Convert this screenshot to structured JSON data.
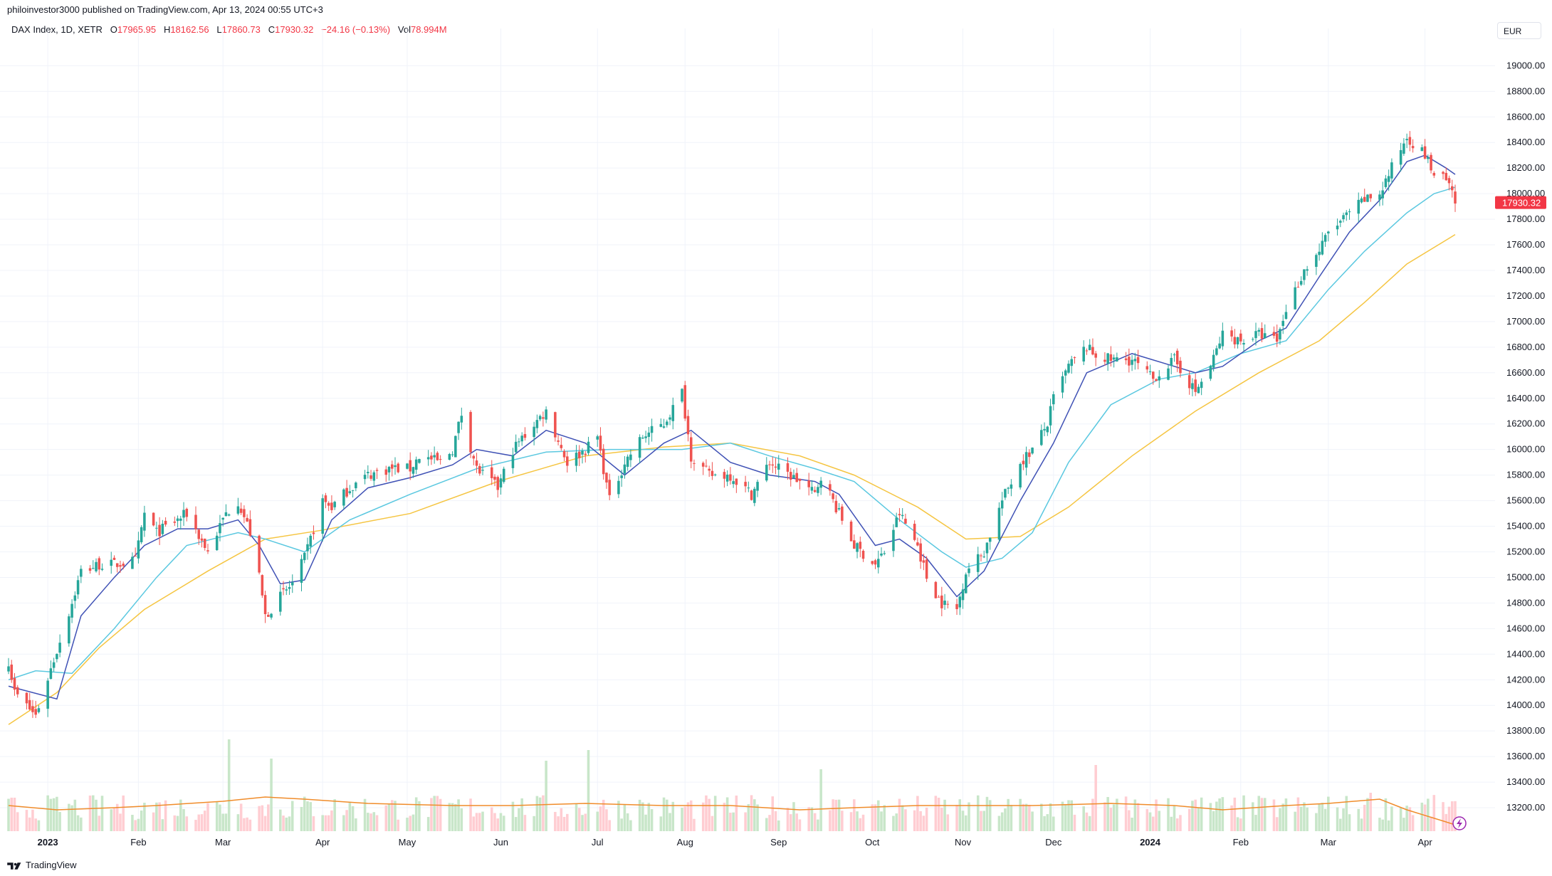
{
  "header": {
    "credit": "philoinvestor3000 published on TradingView.com, Apr 13, 2024 00:55 UTC+3",
    "symbol": "DAX Index, 1D, XETR",
    "o_label": "O",
    "o_value": "17965.95",
    "h_label": "H",
    "h_value": "18162.56",
    "l_label": "L",
    "l_value": "17860.73",
    "c_label": "C",
    "c_value": "17930.32",
    "change": "−24.16 (−0.13%)",
    "vol_label": "Vol",
    "vol_value": "78.994M"
  },
  "currency": "EUR",
  "footer": {
    "brand": "TradingView"
  },
  "colors": {
    "up": "#26a69a",
    "down": "#ef5350",
    "vol_up": "#c8e6c9",
    "vol_down": "#ffcdd2",
    "ma_fast": "#3f51b5",
    "ma_mid": "#5bc8e0",
    "ma_slow": "#f5c542",
    "vol_ma": "#f08c2a",
    "grid": "#f0f3fa",
    "last_price_bg": "#f23645"
  },
  "chart_data": {
    "type": "candlestick",
    "ylim": [
      13050,
      19180
    ],
    "yticks": [
      "13200.00",
      "13400.00",
      "13600.00",
      "13800.00",
      "14000.00",
      "14200.00",
      "14400.00",
      "14600.00",
      "14800.00",
      "15000.00",
      "15200.00",
      "15400.00",
      "15600.00",
      "15800.00",
      "16000.00",
      "16200.00",
      "16400.00",
      "16600.00",
      "16800.00",
      "17000.00",
      "17200.00",
      "17400.00",
      "17600.00",
      "17800.00",
      "18000.00",
      "18200.00",
      "18400.00",
      "18600.00",
      "18800.00",
      "19000.00"
    ],
    "last_price": "17930.32",
    "xticks": [
      {
        "label": "2023",
        "date": "2023-01-02",
        "bold": true
      },
      {
        "label": "Feb",
        "date": "2023-02-01"
      },
      {
        "label": "Mar",
        "date": "2023-03-01"
      },
      {
        "label": "Apr",
        "date": "2023-04-03"
      },
      {
        "label": "May",
        "date": "2023-05-01"
      },
      {
        "label": "Jun",
        "date": "2023-06-01"
      },
      {
        "label": "Jul",
        "date": "2023-07-03"
      },
      {
        "label": "Aug",
        "date": "2023-08-01"
      },
      {
        "label": "Sep",
        "date": "2023-09-01"
      },
      {
        "label": "Oct",
        "date": "2023-10-02"
      },
      {
        "label": "Nov",
        "date": "2023-11-01"
      },
      {
        "label": "Dec",
        "date": "2023-12-01"
      },
      {
        "label": "2024",
        "date": "2024-01-02",
        "bold": true
      },
      {
        "label": "Feb",
        "date": "2024-02-01"
      },
      {
        "label": "Mar",
        "date": "2024-03-01"
      },
      {
        "label": "Apr",
        "date": "2024-04-02"
      }
    ],
    "close_path": [
      [
        "2022-12-20",
        14350
      ],
      [
        "2022-12-22",
        14100
      ],
      [
        "2022-12-29",
        13920
      ],
      [
        "2023-01-05",
        14430
      ],
      [
        "2023-01-10",
        14800
      ],
      [
        "2023-01-13",
        15050
      ],
      [
        "2023-01-19",
        15100
      ],
      [
        "2023-01-24",
        15100
      ],
      [
        "2023-01-31",
        15130
      ],
      [
        "2023-02-03",
        15500
      ],
      [
        "2023-02-07",
        15350
      ],
      [
        "2023-02-14",
        15450
      ],
      [
        "2023-02-17",
        15500
      ],
      [
        "2023-02-24",
        15200
      ],
      [
        "2023-03-02",
        15500
      ],
      [
        "2023-03-06",
        15600
      ],
      [
        "2023-03-10",
        15350
      ],
      [
        "2023-03-13",
        15000
      ],
      [
        "2023-03-15",
        14700
      ],
      [
        "2023-03-20",
        14850
      ],
      [
        "2023-03-24",
        14950
      ],
      [
        "2023-03-28",
        15150
      ],
      [
        "2023-04-03",
        15600
      ],
      [
        "2023-04-06",
        15550
      ],
      [
        "2023-04-12",
        15700
      ],
      [
        "2023-04-18",
        15800
      ],
      [
        "2023-04-25",
        15850
      ],
      [
        "2023-05-02",
        15850
      ],
      [
        "2023-05-05",
        15950
      ],
      [
        "2023-05-12",
        15900
      ],
      [
        "2023-05-16",
        16000
      ],
      [
        "2023-05-19",
        16280
      ],
      [
        "2023-05-24",
        15850
      ],
      [
        "2023-05-31",
        15700
      ],
      [
        "2023-06-05",
        16000
      ],
      [
        "2023-06-12",
        16200
      ],
      [
        "2023-06-16",
        16300
      ],
      [
        "2023-06-23",
        15900
      ],
      [
        "2023-06-29",
        16000
      ],
      [
        "2023-07-03",
        16100
      ],
      [
        "2023-07-07",
        15600
      ],
      [
        "2023-07-12",
        15900
      ],
      [
        "2023-07-18",
        16100
      ],
      [
        "2023-07-25",
        16200
      ],
      [
        "2023-07-31",
        16450
      ],
      [
        "2023-08-03",
        15950
      ],
      [
        "2023-08-09",
        15800
      ],
      [
        "2023-08-16",
        15800
      ],
      [
        "2023-08-23",
        15650
      ],
      [
        "2023-08-29",
        15900
      ],
      [
        "2023-09-01",
        15850
      ],
      [
        "2023-09-08",
        15750
      ],
      [
        "2023-09-13",
        15650
      ],
      [
        "2023-09-15",
        15800
      ],
      [
        "2023-09-21",
        15500
      ],
      [
        "2023-09-26",
        15250
      ],
      [
        "2023-10-03",
        15100
      ],
      [
        "2023-10-06",
        15200
      ],
      [
        "2023-10-11",
        15500
      ],
      [
        "2023-10-17",
        15250
      ],
      [
        "2023-10-20",
        15000
      ],
      [
        "2023-10-25",
        14800
      ],
      [
        "2023-10-30",
        14750
      ],
      [
        "2023-11-02",
        15050
      ],
      [
        "2023-11-08",
        15200
      ],
      [
        "2023-11-14",
        15600
      ],
      [
        "2023-11-20",
        15900
      ],
      [
        "2023-11-24",
        16000
      ],
      [
        "2023-11-29",
        16200
      ],
      [
        "2023-12-01",
        16400
      ],
      [
        "2023-12-06",
        16650
      ],
      [
        "2023-12-12",
        16800
      ],
      [
        "2023-12-14",
        16750
      ],
      [
        "2023-12-20",
        16700
      ],
      [
        "2023-12-27",
        16700
      ],
      [
        "2024-01-03",
        16550
      ],
      [
        "2024-01-05",
        16600
      ],
      [
        "2024-01-10",
        16700
      ],
      [
        "2024-01-17",
        16450
      ],
      [
        "2024-01-22",
        16650
      ],
      [
        "2024-01-26",
        16900
      ],
      [
        "2024-02-01",
        16850
      ],
      [
        "2024-02-07",
        16900
      ],
      [
        "2024-02-13",
        16850
      ],
      [
        "2024-02-16",
        17100
      ],
      [
        "2024-02-22",
        17400
      ],
      [
        "2024-02-27",
        17550
      ],
      [
        "2024-03-01",
        17700
      ],
      [
        "2024-03-06",
        17800
      ],
      [
        "2024-03-08",
        17850
      ],
      [
        "2024-03-13",
        17950
      ],
      [
        "2024-03-18",
        18000
      ],
      [
        "2024-03-22",
        18200
      ],
      [
        "2024-03-27",
        18450
      ],
      [
        "2024-04-02",
        18300
      ],
      [
        "2024-04-05",
        18150
      ],
      [
        "2024-04-09",
        18100
      ],
      [
        "2024-04-12",
        17930
      ]
    ],
    "ma_fast_path": [
      [
        "2022-12-20",
        14150
      ],
      [
        "2023-01-05",
        14050
      ],
      [
        "2023-01-13",
        14700
      ],
      [
        "2023-01-24",
        15000
      ],
      [
        "2023-02-03",
        15250
      ],
      [
        "2023-02-14",
        15380
      ],
      [
        "2023-02-24",
        15380
      ],
      [
        "2023-03-06",
        15450
      ],
      [
        "2023-03-13",
        15250
      ],
      [
        "2023-03-20",
        14950
      ],
      [
        "2023-03-28",
        14980
      ],
      [
        "2023-04-06",
        15450
      ],
      [
        "2023-04-18",
        15700
      ],
      [
        "2023-05-02",
        15780
      ],
      [
        "2023-05-16",
        15880
      ],
      [
        "2023-05-24",
        16000
      ],
      [
        "2023-06-05",
        15950
      ],
      [
        "2023-06-16",
        16150
      ],
      [
        "2023-06-29",
        16050
      ],
      [
        "2023-07-12",
        15800
      ],
      [
        "2023-07-25",
        16050
      ],
      [
        "2023-08-03",
        16150
      ],
      [
        "2023-08-16",
        15900
      ],
      [
        "2023-08-29",
        15800
      ],
      [
        "2023-09-13",
        15750
      ],
      [
        "2023-09-21",
        15650
      ],
      [
        "2023-10-03",
        15250
      ],
      [
        "2023-10-11",
        15300
      ],
      [
        "2023-10-20",
        15150
      ],
      [
        "2023-10-30",
        14850
      ],
      [
        "2023-11-08",
        15050
      ],
      [
        "2023-11-20",
        15600
      ],
      [
        "2023-12-01",
        16050
      ],
      [
        "2023-12-12",
        16600
      ],
      [
        "2023-12-27",
        16750
      ],
      [
        "2024-01-10",
        16650
      ],
      [
        "2024-01-17",
        16600
      ],
      [
        "2024-01-26",
        16650
      ],
      [
        "2024-02-07",
        16850
      ],
      [
        "2024-02-16",
        16950
      ],
      [
        "2024-02-27",
        17350
      ],
      [
        "2024-03-08",
        17700
      ],
      [
        "2024-03-18",
        17950
      ],
      [
        "2024-03-27",
        18250
      ],
      [
        "2024-04-02",
        18300
      ],
      [
        "2024-04-09",
        18200
      ],
      [
        "2024-04-12",
        18150
      ]
    ],
    "ma_mid_path": [
      [
        "2022-12-20",
        14200
      ],
      [
        "2022-12-29",
        14270
      ],
      [
        "2023-01-10",
        14250
      ],
      [
        "2023-01-24",
        14600
      ],
      [
        "2023-02-07",
        15000
      ],
      [
        "2023-02-17",
        15250
      ],
      [
        "2023-03-06",
        15350
      ],
      [
        "2023-03-15",
        15300
      ],
      [
        "2023-03-28",
        15200
      ],
      [
        "2023-04-12",
        15450
      ],
      [
        "2023-05-02",
        15650
      ],
      [
        "2023-05-24",
        15850
      ],
      [
        "2023-06-16",
        15980
      ],
      [
        "2023-07-07",
        16000
      ],
      [
        "2023-07-31",
        16000
      ],
      [
        "2023-08-16",
        16050
      ],
      [
        "2023-08-29",
        15950
      ],
      [
        "2023-09-13",
        15850
      ],
      [
        "2023-09-26",
        15750
      ],
      [
        "2023-10-11",
        15450
      ],
      [
        "2023-10-25",
        15200
      ],
      [
        "2023-11-02",
        15080
      ],
      [
        "2023-11-14",
        15150
      ],
      [
        "2023-11-24",
        15350
      ],
      [
        "2023-12-06",
        15900
      ],
      [
        "2023-12-20",
        16350
      ],
      [
        "2024-01-05",
        16550
      ],
      [
        "2024-01-17",
        16600
      ],
      [
        "2024-02-01",
        16750
      ],
      [
        "2024-02-16",
        16850
      ],
      [
        "2024-03-01",
        17250
      ],
      [
        "2024-03-13",
        17550
      ],
      [
        "2024-03-27",
        17850
      ],
      [
        "2024-04-05",
        18000
      ],
      [
        "2024-04-12",
        18050
      ]
    ],
    "ma_slow_path": [
      [
        "2022-12-20",
        13850
      ],
      [
        "2023-01-05",
        14100
      ],
      [
        "2023-01-19",
        14450
      ],
      [
        "2023-02-03",
        14750
      ],
      [
        "2023-02-24",
        15050
      ],
      [
        "2023-03-15",
        15300
      ],
      [
        "2023-04-03",
        15370
      ],
      [
        "2023-05-02",
        15500
      ],
      [
        "2023-05-31",
        15750
      ],
      [
        "2023-06-29",
        15950
      ],
      [
        "2023-07-25",
        16020
      ],
      [
        "2023-08-16",
        16050
      ],
      [
        "2023-09-08",
        15950
      ],
      [
        "2023-09-26",
        15800
      ],
      [
        "2023-10-17",
        15550
      ],
      [
        "2023-11-02",
        15300
      ],
      [
        "2023-11-20",
        15320
      ],
      [
        "2023-12-06",
        15550
      ],
      [
        "2023-12-27",
        15950
      ],
      [
        "2024-01-17",
        16300
      ],
      [
        "2024-02-07",
        16600
      ],
      [
        "2024-02-27",
        16850
      ],
      [
        "2024-03-13",
        17150
      ],
      [
        "2024-03-27",
        17450
      ],
      [
        "2024-04-12",
        17680
      ]
    ],
    "volume_ma_path": [
      [
        "2022-12-20",
        0.12
      ],
      [
        "2023-01-05",
        0.1
      ],
      [
        "2023-01-24",
        0.11
      ],
      [
        "2023-02-07",
        0.12
      ],
      [
        "2023-03-01",
        0.14
      ],
      [
        "2023-03-15",
        0.16
      ],
      [
        "2023-03-28",
        0.15
      ],
      [
        "2023-04-18",
        0.13
      ],
      [
        "2023-05-16",
        0.12
      ],
      [
        "2023-06-05",
        0.12
      ],
      [
        "2023-06-29",
        0.13
      ],
      [
        "2023-07-25",
        0.12
      ],
      [
        "2023-08-16",
        0.12
      ],
      [
        "2023-09-08",
        0.1
      ],
      [
        "2023-09-26",
        0.11
      ],
      [
        "2023-10-17",
        0.12
      ],
      [
        "2023-11-02",
        0.12
      ],
      [
        "2023-11-24",
        0.12
      ],
      [
        "2023-12-20",
        0.13
      ],
      [
        "2024-01-10",
        0.12
      ],
      [
        "2024-01-26",
        0.1
      ],
      [
        "2024-02-16",
        0.12
      ],
      [
        "2024-03-01",
        0.13
      ],
      [
        "2024-03-18",
        0.15
      ],
      [
        "2024-03-27",
        0.1
      ],
      [
        "2024-04-12",
        0.03
      ]
    ],
    "notable_volume_spikes": [
      [
        "2023-03-03",
        0.43
      ],
      [
        "2023-03-17",
        0.34
      ],
      [
        "2023-06-16",
        0.33
      ],
      [
        "2023-06-30",
        0.38
      ],
      [
        "2023-09-15",
        0.29
      ],
      [
        "2023-12-15",
        0.31
      ],
      [
        "2024-03-15",
        0.18
      ]
    ]
  }
}
